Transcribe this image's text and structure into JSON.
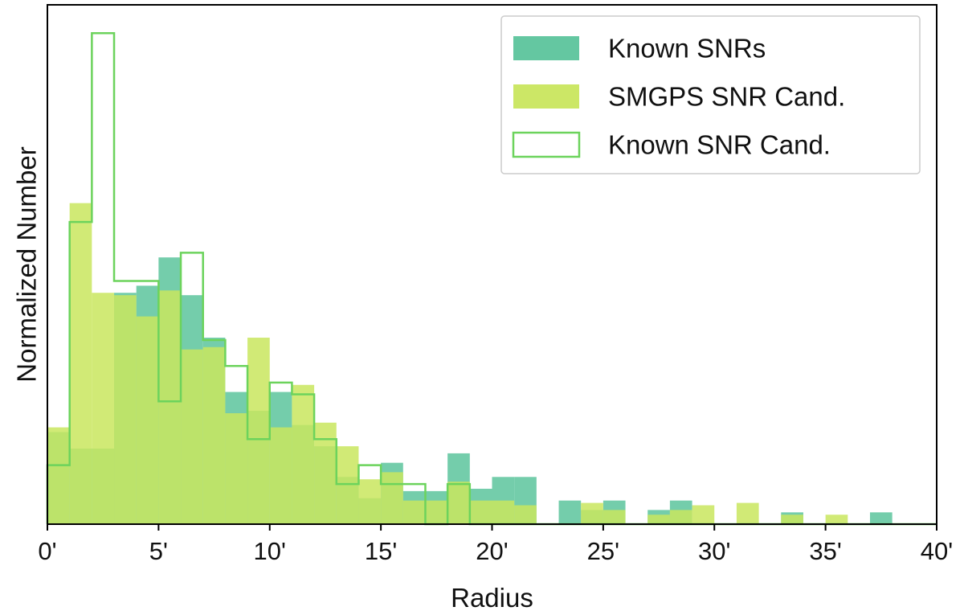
{
  "chart_data": {
    "type": "bar",
    "xlabel": "Radius",
    "ylabel": "Normalized Number",
    "xlim": [
      0,
      40
    ],
    "ylim": [
      0,
      22
    ],
    "bin_width": 1,
    "x_tick_values": [
      0,
      5,
      10,
      15,
      20,
      25,
      30,
      35,
      40
    ],
    "x_tick_labels": [
      "0'",
      "5'",
      "10'",
      "15'",
      "20'",
      "25'",
      "30'",
      "35'",
      "40'"
    ],
    "y_ticks_shown": false,
    "grid": false,
    "legend_position": "top-right",
    "series": [
      {
        "name": "Known SNRs",
        "style": "filled",
        "color": "#5cc49c",
        "bin_starts": [
          0,
          1,
          2,
          3,
          4,
          5,
          6,
          7,
          8,
          9,
          10,
          11,
          12,
          13,
          14,
          15,
          16,
          17,
          18,
          19,
          20,
          21,
          22,
          23,
          24,
          25,
          26,
          27,
          28,
          29,
          30,
          31,
          32,
          33,
          34,
          35,
          36,
          37,
          38,
          39
        ],
        "values": [
          3.9,
          3.2,
          3.2,
          9.8,
          10.1,
          11.3,
          9.7,
          7.9,
          5.6,
          4.8,
          5.6,
          4.2,
          3.3,
          2.0,
          1.1,
          2.6,
          1.4,
          1.4,
          3.0,
          1.5,
          2.0,
          2.0,
          0,
          1.0,
          0.6,
          1.0,
          0,
          0.6,
          1.0,
          0,
          0,
          0,
          0,
          0.5,
          0,
          0,
          0,
          0.5,
          0,
          0
        ]
      },
      {
        "name": "SMGPS SNR Cand.",
        "style": "filled",
        "color": "#c9e65e",
        "bin_starts": [
          0,
          1,
          2,
          3,
          4,
          5,
          6,
          7,
          8,
          9,
          10,
          11,
          12,
          13,
          14,
          15,
          16,
          17,
          18,
          19,
          20,
          21,
          22,
          23,
          24,
          25,
          26,
          27,
          28,
          29,
          30,
          31,
          32,
          33,
          34,
          35,
          36,
          37,
          38,
          39
        ],
        "values": [
          4.1,
          13.6,
          9.8,
          9.7,
          8.8,
          9.9,
          7.4,
          7.5,
          4.7,
          7.9,
          4.1,
          5.9,
          4.3,
          3.3,
          1.9,
          2.2,
          1.0,
          1.0,
          1.8,
          1.0,
          1.0,
          0.8,
          0,
          0,
          0.9,
          0.6,
          0,
          0.4,
          0.6,
          0.8,
          0,
          0.9,
          0,
          0.4,
          0,
          0.4,
          0,
          0,
          0,
          0
        ]
      },
      {
        "name": "Known SNR Cand.",
        "style": "outline",
        "color": "#6cd35c",
        "bin_starts": [
          0,
          1,
          2,
          3,
          4,
          5,
          6,
          7,
          8,
          9,
          10,
          11,
          12,
          13,
          14,
          15,
          16,
          17,
          18,
          19,
          20,
          21,
          22,
          23,
          24,
          25,
          26,
          27,
          28,
          29,
          30,
          31,
          32,
          33,
          34,
          35,
          36,
          37,
          38,
          39
        ],
        "values": [
          2.5,
          12.8,
          20.8,
          10.3,
          10.3,
          5.2,
          11.5,
          7.8,
          6.7,
          3.6,
          6.0,
          5.5,
          3.6,
          1.7,
          2.5,
          1.7,
          1.7,
          0,
          1.7,
          0,
          0,
          0,
          0,
          0,
          0,
          0,
          0,
          0,
          0,
          0,
          0,
          0,
          0,
          0,
          0,
          0,
          0,
          0,
          0,
          0
        ]
      }
    ]
  }
}
